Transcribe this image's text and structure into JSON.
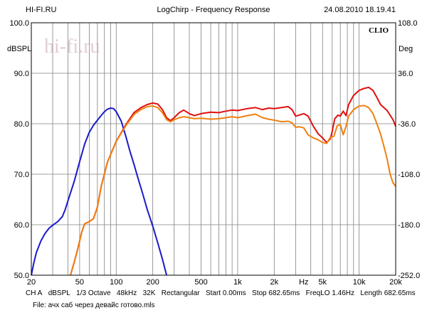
{
  "header": {
    "left": "HI-FI.RU",
    "center": "LogChirp - Frequency Response",
    "right": "24.08.2010 18.19.41"
  },
  "watermark": {
    "text": "hi-fi.ru"
  },
  "brand": {
    "text": "CLIO"
  },
  "footer": {
    "line1": [
      "CH A",
      "dBSPL",
      "1/3 Octave",
      "48kHz",
      "32K",
      "Rectangular",
      "Start 0.00ms",
      "Stop 682.65ms",
      "FreqLO 1.46Hz",
      "Length 682.65ms"
    ],
    "file": "File: ачх саб через девайс готово.mls"
  },
  "colors": {
    "blue": "#1a1acc",
    "red": "#e01010",
    "orange": "#f08010",
    "grid": "#808080"
  },
  "chart_data": {
    "type": "line",
    "x_scale": "log",
    "xlim": [
      20,
      20000
    ],
    "ylim": [
      50,
      100
    ],
    "y2lim": [
      -252,
      108
    ],
    "ylabel": "dBSPL",
    "y2label": "Deg",
    "x_ticks": [
      {
        "value": 20,
        "label": "20"
      },
      {
        "value": 50,
        "label": "50"
      },
      {
        "value": 100,
        "label": "100"
      },
      {
        "value": 200,
        "label": "200"
      },
      {
        "value": 500,
        "label": "500"
      },
      {
        "value": 1000,
        "label": "1k"
      },
      {
        "value": 2000,
        "label": "2k"
      },
      {
        "value": 3500,
        "label": "Hz"
      },
      {
        "value": 5000,
        "label": "5k"
      },
      {
        "value": 10000,
        "label": "10k"
      },
      {
        "value": 20000,
        "label": "20k"
      }
    ],
    "y_ticks": [
      {
        "value": 100,
        "label": "100.0"
      },
      {
        "value": 90,
        "label": "90.0"
      },
      {
        "value": 80,
        "label": "80.0"
      },
      {
        "value": 70,
        "label": "70.0"
      },
      {
        "value": 60,
        "label": "60.0"
      },
      {
        "value": 50,
        "label": "50.0"
      }
    ],
    "y2_ticks": [
      {
        "value": 108,
        "label": "108.0"
      },
      {
        "value": 36,
        "label": "36.0"
      },
      {
        "value": -36,
        "label": "-36.0"
      },
      {
        "value": -108,
        "label": "-108.0"
      },
      {
        "value": -180,
        "label": "-180.0"
      },
      {
        "value": -252,
        "label": "-252.0"
      }
    ],
    "grid": true,
    "series": [
      {
        "color": "#1a1acc",
        "points": [
          [
            20,
            50
          ],
          [
            21,
            52.5
          ],
          [
            22,
            54.5
          ],
          [
            24,
            56.8
          ],
          [
            26,
            58.3
          ],
          [
            28,
            59.3
          ],
          [
            30,
            59.9
          ],
          [
            33,
            60.6
          ],
          [
            36,
            61.6
          ],
          [
            38,
            63
          ],
          [
            41,
            65.5
          ],
          [
            45,
            68.5
          ],
          [
            50,
            72.5
          ],
          [
            55,
            76
          ],
          [
            60,
            78.3
          ],
          [
            65,
            79.7
          ],
          [
            70,
            80.7
          ],
          [
            75,
            81.6
          ],
          [
            80,
            82.4
          ],
          [
            85,
            82.9
          ],
          [
            90,
            83.1
          ],
          [
            95,
            83
          ],
          [
            100,
            82.4
          ],
          [
            110,
            80.5
          ],
          [
            120,
            77.5
          ],
          [
            130,
            74.5
          ],
          [
            140,
            72
          ],
          [
            150,
            69.5
          ],
          [
            165,
            66.2
          ],
          [
            180,
            63
          ],
          [
            200,
            59.7
          ],
          [
            220,
            56.4
          ],
          [
            240,
            53.2
          ],
          [
            260,
            50
          ]
        ]
      },
      {
        "color": "#e01010",
        "points": [
          [
            42,
            50
          ],
          [
            45,
            52.5
          ],
          [
            48,
            55
          ],
          [
            52,
            58.5
          ],
          [
            55,
            60.2
          ],
          [
            60,
            60.6
          ],
          [
            65,
            61.2
          ],
          [
            70,
            63.5
          ],
          [
            75,
            67.5
          ],
          [
            85,
            72.5
          ],
          [
            100,
            76.5
          ],
          [
            120,
            79.8
          ],
          [
            140,
            82.2
          ],
          [
            160,
            83.2
          ],
          [
            180,
            83.8
          ],
          [
            200,
            84.1
          ],
          [
            220,
            83.9
          ],
          [
            240,
            82.8
          ],
          [
            260,
            81.2
          ],
          [
            280,
            80.6
          ],
          [
            300,
            81.2
          ],
          [
            330,
            82.2
          ],
          [
            360,
            82.7
          ],
          [
            400,
            82
          ],
          [
            440,
            81.6
          ],
          [
            500,
            82
          ],
          [
            600,
            82.3
          ],
          [
            700,
            82.2
          ],
          [
            800,
            82.5
          ],
          [
            900,
            82.7
          ],
          [
            1000,
            82.6
          ],
          [
            1200,
            83
          ],
          [
            1400,
            83.2
          ],
          [
            1600,
            82.8
          ],
          [
            1800,
            83.1
          ],
          [
            2000,
            83
          ],
          [
            2300,
            83.2
          ],
          [
            2600,
            83.4
          ],
          [
            2800,
            82.8
          ],
          [
            3000,
            81.5
          ],
          [
            3200,
            81.7
          ],
          [
            3500,
            82
          ],
          [
            3800,
            81.5
          ],
          [
            4200,
            79.5
          ],
          [
            4600,
            78
          ],
          [
            5000,
            77.2
          ],
          [
            5400,
            76.3
          ],
          [
            5800,
            77
          ],
          [
            6000,
            78.5
          ],
          [
            6300,
            81
          ],
          [
            6700,
            81.7
          ],
          [
            7000,
            81.5
          ],
          [
            7400,
            82.5
          ],
          [
            7800,
            81.6
          ],
          [
            8200,
            83.8
          ],
          [
            9000,
            85.6
          ],
          [
            10000,
            86.6
          ],
          [
            11000,
            87
          ],
          [
            12000,
            87.2
          ],
          [
            13000,
            86.6
          ],
          [
            14000,
            85.2
          ],
          [
            15000,
            83.8
          ],
          [
            17000,
            82.6
          ],
          [
            19000,
            80.8
          ],
          [
            20000,
            79.5
          ]
        ]
      },
      {
        "color": "#f08010",
        "points": [
          [
            42,
            50
          ],
          [
            45,
            52.5
          ],
          [
            48,
            55
          ],
          [
            52,
            58.5
          ],
          [
            55,
            60.2
          ],
          [
            60,
            60.6
          ],
          [
            65,
            61.2
          ],
          [
            70,
            63.5
          ],
          [
            75,
            67.5
          ],
          [
            85,
            72.5
          ],
          [
            100,
            76.5
          ],
          [
            120,
            79.6
          ],
          [
            140,
            81.8
          ],
          [
            160,
            82.8
          ],
          [
            180,
            83.4
          ],
          [
            200,
            83.5
          ],
          [
            220,
            83.2
          ],
          [
            240,
            82.2
          ],
          [
            260,
            80.8
          ],
          [
            280,
            80.4
          ],
          [
            300,
            80.8
          ],
          [
            330,
            81.2
          ],
          [
            360,
            81.4
          ],
          [
            400,
            81.2
          ],
          [
            440,
            81
          ],
          [
            500,
            81.1
          ],
          [
            600,
            80.9
          ],
          [
            700,
            81
          ],
          [
            800,
            81.2
          ],
          [
            900,
            81.4
          ],
          [
            1000,
            81.2
          ],
          [
            1200,
            81.6
          ],
          [
            1400,
            81.9
          ],
          [
            1600,
            81.2
          ],
          [
            1800,
            80.9
          ],
          [
            2000,
            80.7
          ],
          [
            2300,
            80.4
          ],
          [
            2600,
            80.5
          ],
          [
            2800,
            80.2
          ],
          [
            3000,
            79.3
          ],
          [
            3200,
            79.4
          ],
          [
            3500,
            79.2
          ],
          [
            3800,
            77.8
          ],
          [
            4200,
            77.2
          ],
          [
            4600,
            76.8
          ],
          [
            5000,
            76.3
          ],
          [
            5400,
            76.1
          ],
          [
            5800,
            77.3
          ],
          [
            6200,
            77.5
          ],
          [
            6600,
            79.6
          ],
          [
            7000,
            79.8
          ],
          [
            7400,
            77.8
          ],
          [
            7800,
            79.5
          ],
          [
            8200,
            81.5
          ],
          [
            9000,
            82.8
          ],
          [
            10000,
            83.5
          ],
          [
            11000,
            83.6
          ],
          [
            12000,
            83.2
          ],
          [
            13000,
            82
          ],
          [
            14000,
            80
          ],
          [
            15000,
            78
          ],
          [
            16000,
            75.5
          ],
          [
            17000,
            73
          ],
          [
            18000,
            70
          ],
          [
            19000,
            68.3
          ],
          [
            20000,
            67.6
          ]
        ]
      }
    ]
  }
}
